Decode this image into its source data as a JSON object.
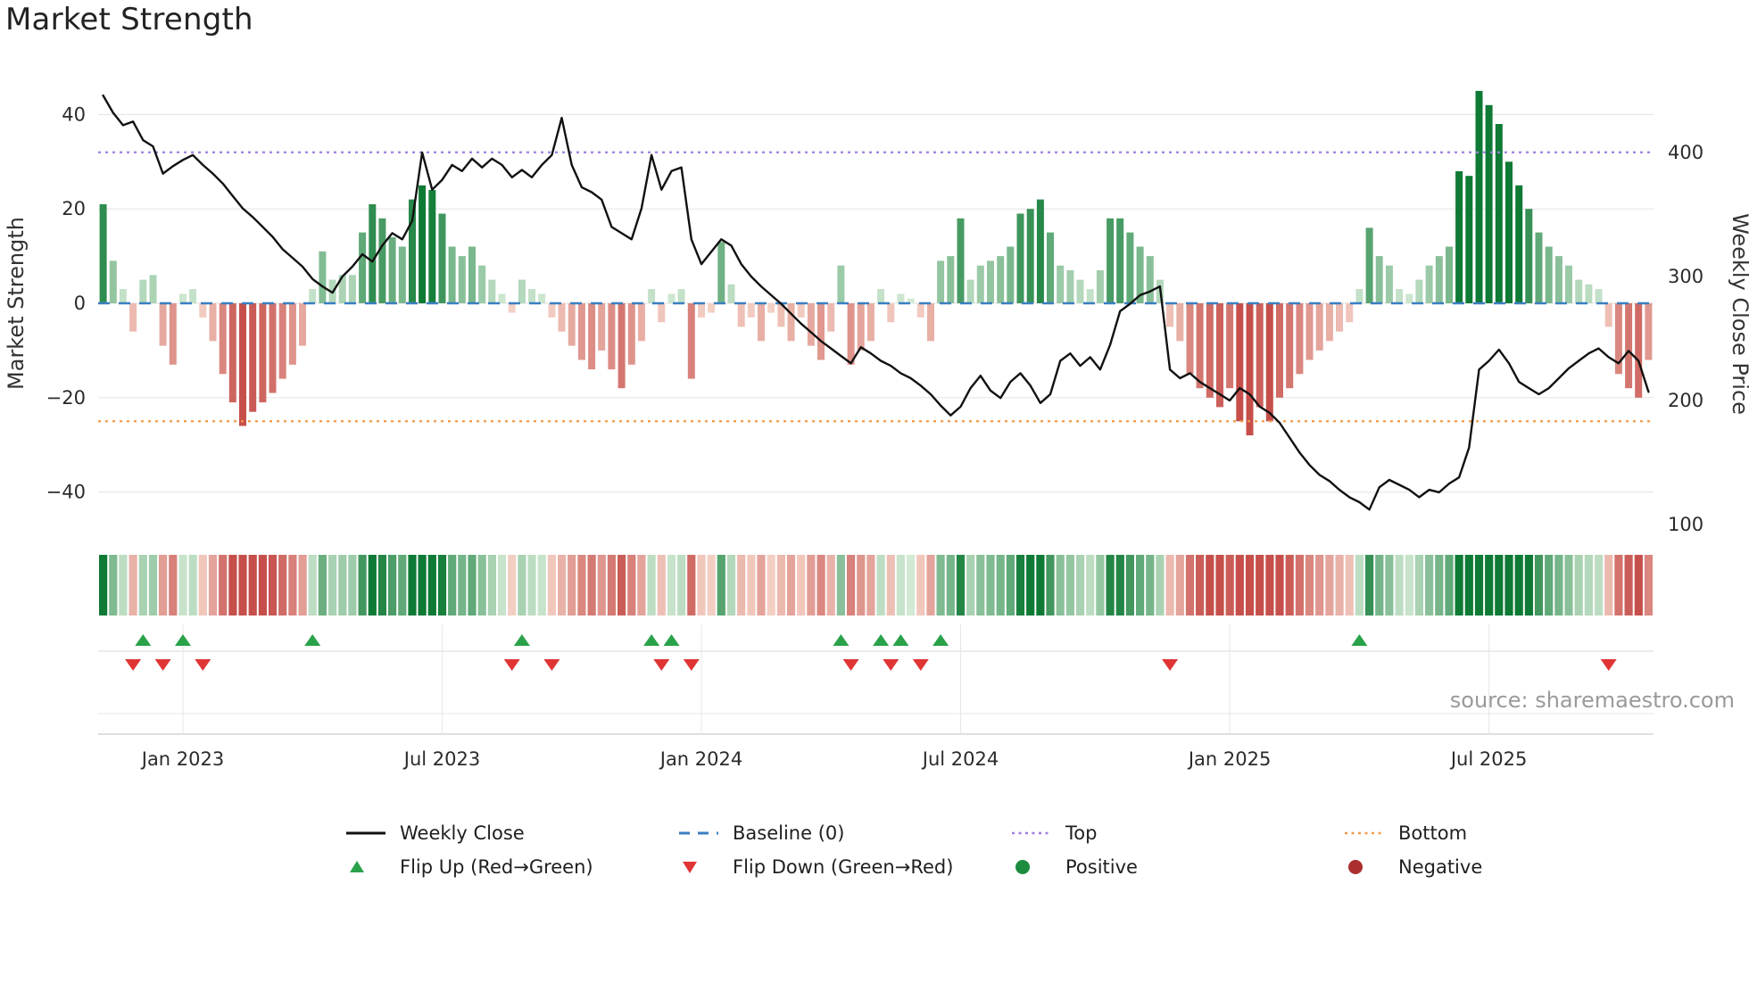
{
  "page": {
    "title": "Market Strength"
  },
  "chart_data": {
    "type": "bar",
    "title": "Market Strength",
    "n_weeks": 156,
    "x_axis": {
      "tick_weeks": [
        8,
        34,
        60,
        86,
        113,
        139
      ],
      "tick_labels": [
        "Jan 2023",
        "Jul 2023",
        "Jan 2024",
        "Jul 2024",
        "Jan 2025",
        "Jul 2025"
      ]
    },
    "left_axis": {
      "label": "Market Strength",
      "tick_values": [
        40,
        20,
        0,
        -20,
        -40
      ],
      "tick_labels": [
        "40",
        "20",
        "0",
        "−20",
        "−40"
      ],
      "range": [
        -52,
        50
      ]
    },
    "right_axis": {
      "label": "Weekly Close Price",
      "tick_values": [
        400,
        300,
        200,
        100
      ],
      "tick_labels": [
        "400",
        "300",
        "200",
        "100"
      ]
    },
    "reference_lines": {
      "baseline": {
        "value": 0,
        "label": "Baseline (0)"
      },
      "top": {
        "value": 32,
        "label": "Top"
      },
      "bottom": {
        "value": -25,
        "label": "Bottom"
      }
    },
    "series": [
      {
        "name": "Market Strength",
        "type": "bar",
        "values": [
          21,
          9,
          3,
          -6,
          5,
          6,
          -9,
          -13,
          2,
          3,
          -3,
          -8,
          -15,
          -21,
          -26,
          -23,
          -21,
          -19,
          -16,
          -13,
          -9,
          3,
          11,
          5,
          6,
          6,
          15,
          21,
          18,
          14,
          12,
          22,
          25,
          24,
          19,
          12,
          10,
          12,
          8,
          5,
          2,
          -2,
          5,
          3,
          2,
          -3,
          -6,
          -9,
          -12,
          -14,
          -10,
          -14,
          -18,
          -13,
          -8,
          3,
          -4,
          2,
          3,
          -16,
          -3,
          -2,
          13,
          4,
          -5,
          -3,
          -8,
          -2,
          -5,
          -8,
          -3,
          -9,
          -12,
          -6,
          8,
          -13,
          -10,
          -8,
          3,
          -4,
          2,
          1,
          -3,
          -8,
          9,
          10,
          18,
          5,
          8,
          9,
          10,
          12,
          19,
          20,
          22,
          15,
          8,
          7,
          5,
          3,
          7,
          18,
          18,
          15,
          12,
          10,
          5,
          -5,
          -8,
          -15,
          -18,
          -20,
          -22,
          -18,
          -25,
          -28,
          -22,
          -25,
          -20,
          -18,
          -15,
          -12,
          -10,
          -8,
          -6,
          -4,
          3,
          16,
          10,
          8,
          3,
          2,
          5,
          8,
          10,
          12,
          28,
          27,
          45,
          42,
          38,
          30,
          25,
          20,
          15,
          12,
          10,
          8,
          5,
          4,
          3,
          -5,
          -15,
          -18,
          -20,
          -12
        ]
      },
      {
        "name": "Weekly Close",
        "type": "line",
        "values": [
          446,
          432,
          422,
          425,
          410,
          405,
          383,
          389,
          394,
          398,
          390,
          383,
          375,
          365,
          355,
          348,
          340,
          332,
          322,
          315,
          308,
          298,
          292,
          287,
          300,
          308,
          318,
          312,
          325,
          335,
          330,
          345,
          400,
          370,
          378,
          390,
          385,
          395,
          388,
          395,
          390,
          380,
          386,
          380,
          390,
          398,
          428,
          390,
          372,
          368,
          362,
          340,
          335,
          330,
          355,
          398,
          370,
          385,
          388,
          330,
          310,
          320,
          330,
          325,
          310,
          300,
          292,
          285,
          278,
          270,
          262,
          255,
          248,
          242,
          236,
          230,
          243,
          238,
          232,
          228,
          222,
          218,
          212,
          205,
          196,
          188,
          195,
          210,
          220,
          208,
          202,
          215,
          222,
          212,
          198,
          205,
          232,
          238,
          228,
          235,
          225,
          245,
          272,
          278,
          285,
          288,
          292,
          225,
          218,
          222,
          215,
          210,
          205,
          200,
          210,
          205,
          195,
          190,
          182,
          170,
          158,
          148,
          140,
          135,
          128,
          122,
          118,
          112,
          130,
          136,
          132,
          128,
          122,
          128,
          126,
          133,
          138,
          162,
          225,
          232,
          241,
          230,
          215,
          210,
          205,
          210,
          218,
          226,
          232,
          238,
          242,
          235,
          230,
          240,
          232,
          207
        ]
      }
    ],
    "flip_up_weeks": [
      4,
      8,
      21,
      42,
      55,
      57,
      74,
      78,
      80,
      84,
      126
    ],
    "flip_down_weeks": [
      3,
      6,
      10,
      41,
      45,
      56,
      59,
      75,
      79,
      82,
      107,
      151
    ],
    "source_text": "source: sharemaestro.com"
  },
  "legend": {
    "items": [
      {
        "label": "Weekly Close"
      },
      {
        "label": "Baseline (0)"
      },
      {
        "label": "Top"
      },
      {
        "label": "Bottom"
      },
      {
        "label": "Flip Up (Red→Green)"
      },
      {
        "label": "Flip Down (Green→Red)"
      },
      {
        "label": "Positive"
      },
      {
        "label": "Negative"
      }
    ]
  },
  "colors": {
    "price_line": "#111111",
    "baseline": "#3a7fc1",
    "top_line": "#a07ee0",
    "bottom_line": "#f09a4b",
    "bar_green_dark": "#0e7a35",
    "bar_green_light": "#dcefdc",
    "bar_red_dark": "#c64f4b",
    "bar_red_light": "#f8dcd0",
    "flip_up": "#2aa24a",
    "flip_down": "#e03535",
    "positive": "#1d8c3f",
    "negative": "#ab2f2f",
    "grid": "#e7e7e7",
    "panel_line": "#d9d9d9",
    "text": "#2b2b2b",
    "muted_text": "#9a9a9a"
  }
}
